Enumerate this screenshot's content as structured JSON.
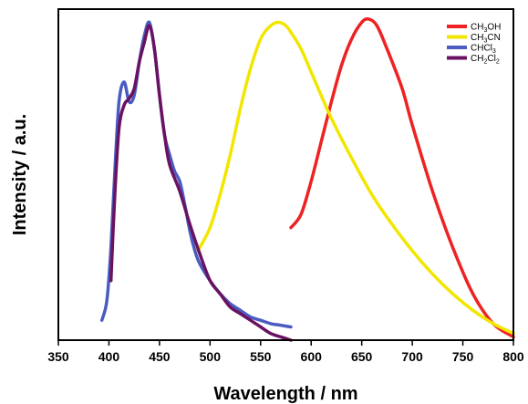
{
  "chart_data": {
    "type": "line",
    "title": "",
    "xlabel": "Wavelength / nm",
    "ylabel": "Intensity / a.u.",
    "xlim": [
      350,
      800
    ],
    "ylim": [
      0,
      1.0
    ],
    "xticks": [
      350,
      400,
      450,
      500,
      550,
      600,
      650,
      700,
      750,
      800
    ],
    "show_y_ticks": false,
    "grid": false,
    "legend_position": "top-right",
    "series": [
      {
        "name": "CH3OH",
        "legend": {
          "base": "CH",
          "parts": [
            [
              "3",
              "sub"
            ],
            [
              "OH",
              "norm"
            ]
          ]
        },
        "color": "#ee2222",
        "x": [
          580,
          590,
          600,
          610,
          620,
          630,
          640,
          650,
          657,
          665,
          675,
          690,
          700,
          720,
          740,
          760,
          780,
          800
        ],
        "y": [
          0.34,
          0.38,
          0.48,
          0.6,
          0.72,
          0.83,
          0.91,
          0.96,
          0.97,
          0.95,
          0.88,
          0.76,
          0.65,
          0.45,
          0.28,
          0.14,
          0.05,
          0.01
        ]
      },
      {
        "name": "CH3CN",
        "legend": {
          "base": "CH",
          "parts": [
            [
              "3",
              "sub"
            ],
            [
              "CN",
              "norm"
            ]
          ]
        },
        "color": "#f2e600",
        "x": [
          488,
          500,
          510,
          520,
          530,
          540,
          550,
          560,
          568,
          575,
          580,
          590,
          600,
          620,
          640,
          660,
          680,
          700,
          720,
          740,
          760,
          780,
          800
        ],
        "y": [
          0.27,
          0.34,
          0.44,
          0.56,
          0.7,
          0.82,
          0.91,
          0.95,
          0.96,
          0.95,
          0.93,
          0.88,
          0.81,
          0.67,
          0.55,
          0.44,
          0.35,
          0.27,
          0.2,
          0.14,
          0.09,
          0.05,
          0.02
        ]
      },
      {
        "name": "CHCl3",
        "legend": {
          "base": "CHCl",
          "parts": [
            [
              "3",
              "sub"
            ]
          ]
        },
        "color": "#4a5cc2",
        "x": [
          393,
          398,
          402,
          406,
          410,
          415,
          420,
          425,
          430,
          435,
          440,
          445,
          450,
          455,
          460,
          465,
          470,
          475,
          480,
          485,
          490,
          500,
          510,
          520,
          530,
          540,
          550,
          560,
          570,
          580
        ],
        "y": [
          0.06,
          0.12,
          0.28,
          0.52,
          0.72,
          0.78,
          0.72,
          0.74,
          0.84,
          0.92,
          0.96,
          0.88,
          0.74,
          0.62,
          0.56,
          0.51,
          0.48,
          0.41,
          0.33,
          0.27,
          0.23,
          0.18,
          0.14,
          0.11,
          0.09,
          0.07,
          0.06,
          0.05,
          0.045,
          0.04
        ]
      },
      {
        "name": "CH2Cl2",
        "legend": {
          "base": "CH",
          "parts": [
            [
              "2",
              "sub"
            ],
            [
              "Cl",
              "norm"
            ],
            [
              "2",
              "sub"
            ]
          ]
        },
        "color": "#6a1262",
        "x": [
          402,
          406,
          410,
          415,
          420,
          425,
          430,
          435,
          440,
          445,
          450,
          455,
          460,
          470,
          480,
          490,
          500,
          510,
          520,
          530,
          540,
          550,
          560,
          570,
          580
        ],
        "y": [
          0.18,
          0.45,
          0.64,
          0.71,
          0.73,
          0.76,
          0.84,
          0.9,
          0.95,
          0.88,
          0.74,
          0.62,
          0.53,
          0.45,
          0.35,
          0.26,
          0.18,
          0.14,
          0.1,
          0.08,
          0.06,
          0.04,
          0.02,
          0.01,
          0.0
        ]
      }
    ]
  }
}
